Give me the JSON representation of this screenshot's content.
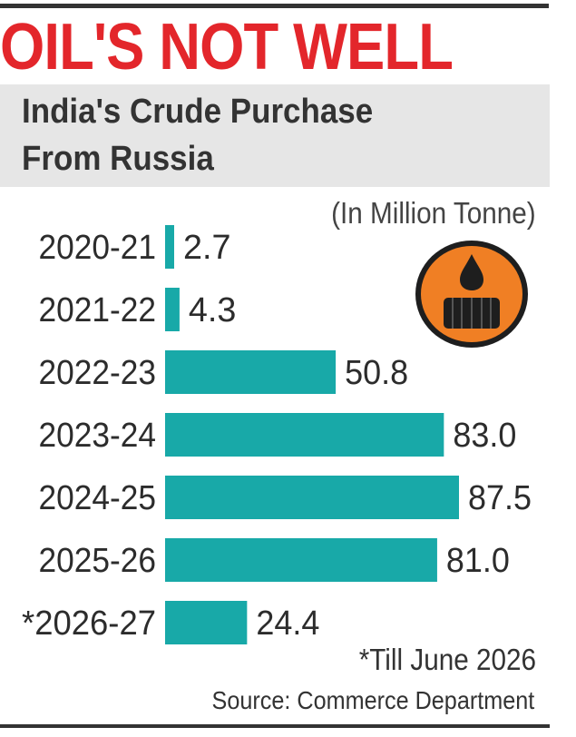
{
  "headline": "OIL'S NOT WELL",
  "subhead_line1": "India's Crude Purchase",
  "subhead_line2": "From Russia",
  "unit": "(In Million Tonne)",
  "footnote": "*Till June 2026",
  "source": "Source: Commerce Department",
  "icon": "oil-barrel-drop-icon",
  "colors": {
    "headline": "#e3262b",
    "bar": "#18a9a8",
    "icon_bg": "#f07f24",
    "subhead_bg": "#e6e6e6"
  },
  "chart_data": {
    "type": "bar",
    "orientation": "horizontal",
    "title": "India's Crude Purchase From Russia",
    "unit": "(In Million Tonne)",
    "categories": [
      "2020-21",
      "2021-22",
      "2022-23",
      "2023-24",
      "2024-25",
      "2025-26",
      "*2026-27"
    ],
    "values": [
      2.7,
      4.3,
      50.8,
      83.0,
      87.5,
      81.0,
      24.4
    ],
    "value_labels": [
      "2.7",
      "4.3",
      "50.8",
      "83.0",
      "87.5",
      "81.0",
      "24.4"
    ],
    "xlim": [
      0,
      87.5
    ],
    "grid": false,
    "legend": "none"
  }
}
